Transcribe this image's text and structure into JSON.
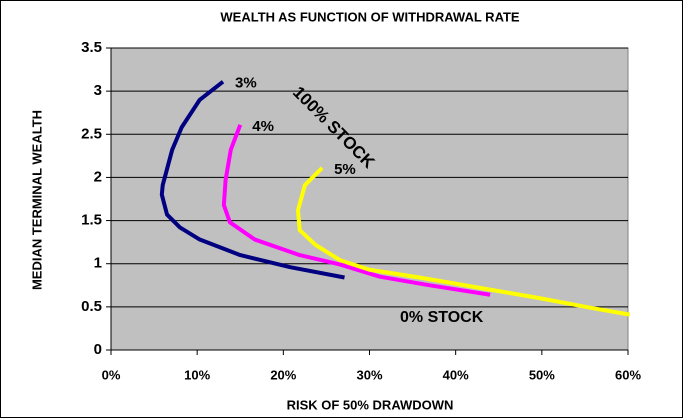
{
  "chart_data": {
    "type": "line",
    "title": "WEALTH AS FUNCTION OF WITHDRAWAL RATE",
    "x_label": "RISK OF 50% DRAWDOWN",
    "y_label": "MEDIAN TERMINAL WEALTH",
    "xlim": [
      0,
      60
    ],
    "xticks": [
      {
        "value": 0,
        "label": "0%"
      },
      {
        "value": 10,
        "label": "10%"
      },
      {
        "value": 20,
        "label": "20%"
      },
      {
        "value": 30,
        "label": "30%"
      },
      {
        "value": 40,
        "label": "40%"
      },
      {
        "value": 50,
        "label": "50%"
      },
      {
        "value": 60,
        "label": "60%"
      }
    ],
    "ylim": [
      0,
      3.5
    ],
    "yticks": [
      0,
      0.5,
      1,
      1.5,
      2,
      2.5,
      3,
      3.5
    ],
    "grid": true,
    "series": [
      {
        "name": "3%",
        "color": "#000080",
        "x": [
          13.0,
          10.3,
          8.2,
          7.1,
          6.0,
          5.9,
          6.5,
          8.0,
          10.3,
          15.0,
          20.8,
          27.1
        ],
        "values": [
          3.11,
          2.9,
          2.58,
          2.32,
          1.91,
          1.8,
          1.57,
          1.42,
          1.28,
          1.1,
          0.96,
          0.84
        ]
      },
      {
        "name": "4%",
        "color": "#ff00ff",
        "x": [
          15.0,
          13.9,
          13.3,
          13.1,
          13.8,
          16.7,
          21.9,
          26.6,
          31.2,
          37.0,
          44.0
        ],
        "values": [
          2.61,
          2.32,
          1.97,
          1.68,
          1.48,
          1.28,
          1.1,
          0.99,
          0.85,
          0.75,
          0.64
        ]
      },
      {
        "name": "5%",
        "color": "#ffff00",
        "x": [
          24.5,
          22.5,
          21.7,
          21.9,
          23.7,
          26.6,
          30.0,
          35.8,
          42.8,
          49.8,
          55.6,
          60.2
        ],
        "values": [
          2.11,
          1.91,
          1.62,
          1.39,
          1.22,
          1.04,
          0.93,
          0.84,
          0.72,
          0.6,
          0.49,
          0.41
        ]
      }
    ],
    "annotations": [
      "100% STOCK",
      "0% STOCK"
    ]
  }
}
